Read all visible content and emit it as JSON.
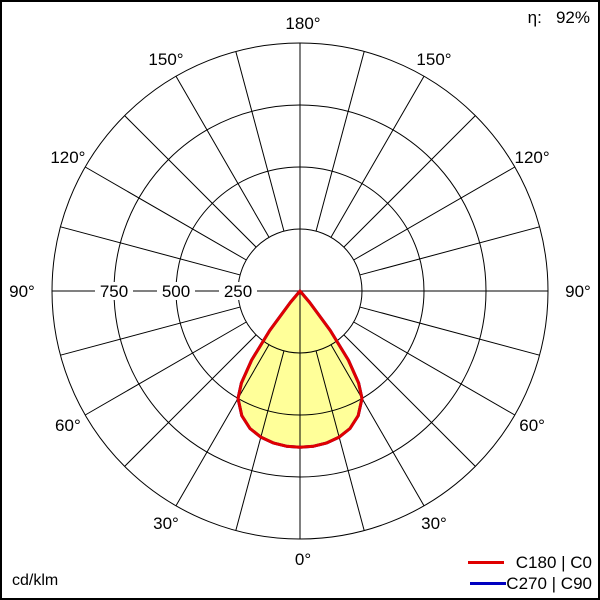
{
  "efficiency": {
    "label": "η:",
    "value": "92%"
  },
  "unit": "cd/klm",
  "legend": [
    {
      "label": "C180 | C0",
      "color": "#e00000"
    },
    {
      "label": "C270 | C90",
      "color": "#0000c0"
    }
  ],
  "chart_data": {
    "type": "polar",
    "unit": "cd/klm",
    "radial_ticks": [
      "250",
      "500",
      "750"
    ],
    "radial_max": 1000,
    "angle_tick_labels": [
      "0°",
      "30°",
      "60°",
      "90°",
      "120°",
      "150°",
      "180°"
    ],
    "fill_color": "#ffff99",
    "series": [
      {
        "name": "C180 | C0",
        "color": "#e00000",
        "angles": [
          0,
          5,
          10,
          15,
          20,
          25,
          30,
          32.5,
          35,
          37.5,
          40,
          45,
          90,
          180
        ],
        "values": [
          630,
          628,
          622,
          610,
          590,
          555,
          500,
          440,
          340,
          200,
          60,
          0,
          0,
          0
        ]
      },
      {
        "name": "C270 | C90",
        "color": "#0000c0",
        "angles": [
          0,
          5,
          10,
          15,
          20,
          25,
          30,
          32.5,
          35,
          37.5,
          40,
          45,
          90,
          180
        ],
        "values": [
          630,
          628,
          622,
          610,
          590,
          555,
          500,
          440,
          340,
          200,
          60,
          0,
          0,
          0
        ]
      }
    ]
  }
}
